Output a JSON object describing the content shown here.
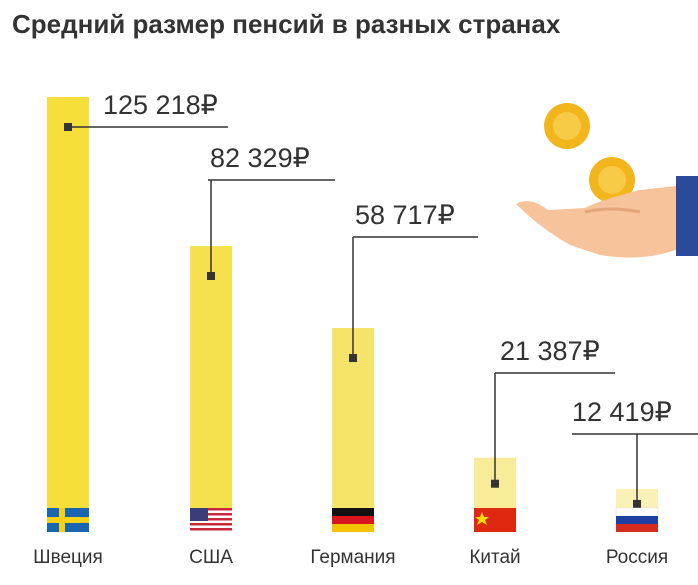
{
  "chart_data": {
    "type": "bar",
    "title": "Средний размер пенсий в разных странах",
    "categories": [
      "Швеция",
      "США",
      "Германия",
      "Китай",
      "Россия"
    ],
    "values": [
      125218,
      82329,
      58717,
      21387,
      12419
    ],
    "value_labels": [
      "125 218₽",
      "82 329₽",
      "58 717₽",
      "21 387₽",
      "12 419₽"
    ],
    "colors": [
      "#f6df3b",
      "#f5e14e",
      "#f6e46a",
      "#f8ec98",
      "#faf1b6"
    ]
  }
}
